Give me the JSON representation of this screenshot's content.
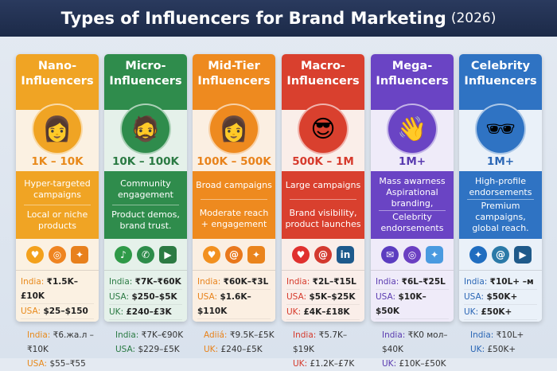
{
  "title": {
    "main": "Types of Influencers for Brand Marketing",
    "year": "(2026)"
  },
  "columns": [
    {
      "name": "Nano-\nInfluencers",
      "color": "#f0a424",
      "light": "#fbf1e2",
      "range_color": "#e8891a",
      "range": "1K – 10K",
      "avatar": "👩",
      "uses": [
        "Hyper-targeted campaigns",
        "Local or niche products"
      ],
      "icons": [
        {
          "name": "heart-icon",
          "glyph": "♥",
          "color": "#f3a11c"
        },
        {
          "name": "instagram-icon",
          "glyph": "◎",
          "color": "#ef8420"
        },
        {
          "name": "twitter-icon",
          "glyph": "✦",
          "color": "#e8801c",
          "sq": true
        }
      ],
      "prices": [
        {
          "label": "India:",
          "value": "₹1.5K–£10K"
        },
        {
          "label": "USA:",
          "value": "$25–$150"
        },
        {
          "label": "UK:",
          "value": "£40–£160"
        }
      ],
      "extra": [
        {
          "label": "India:",
          "value": "₹6.жa.л –₹10K"
        },
        {
          "label": "USA:",
          "value": "$55–₹55"
        }
      ]
    },
    {
      "name": "Micro-\nInfluencers",
      "color": "#2f8c4c",
      "light": "#e5f1ea",
      "range_color": "#2a7a43",
      "range": "10K – 100K",
      "avatar": "🧔",
      "uses": [
        "Community engagement",
        "Product demos, brand trust."
      ],
      "icons": [
        {
          "name": "tiktok-icon",
          "glyph": "♪",
          "color": "#2f9a48"
        },
        {
          "name": "whatsapp-icon",
          "glyph": "✆",
          "color": "#2d8c4a"
        },
        {
          "name": "youtube-icon",
          "glyph": "▶",
          "color": "#2c7a43",
          "sq": true
        }
      ],
      "prices": [
        {
          "label": "India:",
          "value": "₹7K–₹60K"
        },
        {
          "label": "USA:",
          "value": "$250–$5K"
        },
        {
          "label": "UK:",
          "value": "£240–£3K"
        }
      ],
      "extra": [
        {
          "label": "India:",
          "value": "₹7K–€90K"
        },
        {
          "label": "USA:",
          "value": "$229–£5K"
        }
      ]
    },
    {
      "name": "Mid-Tier\nInfluencers",
      "color": "#ee8a1f",
      "light": "#fbefe2",
      "range_color": "#e8821a",
      "range": "100K – 500K",
      "avatar": "👩",
      "uses": [
        "Broad campaigns",
        "Moderate reach + engagement"
      ],
      "icons": [
        {
          "name": "heart-icon",
          "glyph": "♥",
          "color": "#f2901f"
        },
        {
          "name": "threads-icon",
          "glyph": "@",
          "color": "#e9781c"
        },
        {
          "name": "twitter-icon",
          "glyph": "✦",
          "color": "#ea841c",
          "sq": true
        }
      ],
      "prices": [
        {
          "label": "India:",
          "value": "₹60K–₹3L"
        },
        {
          "label": "USA:",
          "value": "$1.6K–$110K"
        },
        {
          "label": "UK:",
          "value": "£1.2K–£7K"
        }
      ],
      "extra": [
        {
          "label": "Adiiá:",
          "value": "₹9.5K–£5K"
        },
        {
          "label": "UK:",
          "value": "£240–£5K"
        }
      ]
    },
    {
      "name": "Macro-\nInfluencers",
      "color": "#d9402e",
      "light": "#faeee9",
      "range_color": "#d6392b",
      "range": "500K – 1M",
      "avatar": "😎",
      "uses": [
        "Large campaigns",
        "Brand visibility, product launches"
      ],
      "icons": [
        {
          "name": "heart-icon",
          "glyph": "♥",
          "color": "#e0302e"
        },
        {
          "name": "threads-icon",
          "glyph": "@",
          "color": "#d33a2f"
        },
        {
          "name": "linkedin-icon",
          "glyph": "in",
          "color": "#1d5a8c",
          "sq": true
        }
      ],
      "prices": [
        {
          "label": "India:",
          "value": "₹2L–₹15L"
        },
        {
          "label": "USA:",
          "value": "$5K–$25K"
        },
        {
          "label": "UK:",
          "value": "£4K–£18K"
        }
      ],
      "extra": [
        {
          "label": "India:",
          "value": "₹5.7K–$19K"
        },
        {
          "label": "UK:",
          "value": "£1.2K–£7K"
        }
      ]
    },
    {
      "name": "Mega-\nInfluencers",
      "color": "#6a44c4",
      "light": "#efebf9",
      "range_color": "#5a3bb0",
      "range": "1M+",
      "avatar": "👋",
      "uses": [
        "Mass awarness Aspirational branding,",
        "Celebrity endorsements"
      ],
      "icons": [
        {
          "name": "messenger-icon",
          "glyph": "✉",
          "color": "#5b3dc0"
        },
        {
          "name": "instagram-icon",
          "glyph": "◎",
          "color": "#6b3fc2"
        },
        {
          "name": "twitter-icon",
          "glyph": "✦",
          "color": "#4a9ae0",
          "sq": true
        }
      ],
      "prices": [
        {
          "label": "India:",
          "value": "₹6L–₹25L"
        },
        {
          "label": "USA:",
          "value": "$10K–$50K"
        },
        {
          "label": "UK:",
          "value": "£10K–£50K"
        }
      ],
      "extra": [
        {
          "label": "India:",
          "value": "₹K0 мол–$40K"
        },
        {
          "label": "UK:",
          "value": "£10K–£50K"
        }
      ]
    },
    {
      "name": "Celebrity\nInfluencers",
      "color": "#2f73c3",
      "light": "#eaf1f9",
      "range_color": "#2a66b5",
      "range": "1M+",
      "avatar": "🕶",
      "uses": [
        "High-profile endorsements",
        "Premium campaigns, global reach."
      ],
      "icons": [
        {
          "name": "twitter-icon",
          "glyph": "✦",
          "color": "#1f6dc0"
        },
        {
          "name": "threads-icon",
          "glyph": "@",
          "color": "#2b7aa8"
        },
        {
          "name": "youtube-icon",
          "glyph": "▶",
          "color": "#1f5a8a",
          "sq": true
        }
      ],
      "prices": [
        {
          "label": "India:",
          "value": "₹10L+ –м"
        },
        {
          "label": "USA:",
          "value": "$50K+"
        },
        {
          "label": "UK:",
          "value": "£50K+"
        }
      ],
      "extra": [
        {
          "label": "India:",
          "value": "₹10L+"
        },
        {
          "label": "UK:",
          "value": "£50K+"
        }
      ]
    }
  ]
}
